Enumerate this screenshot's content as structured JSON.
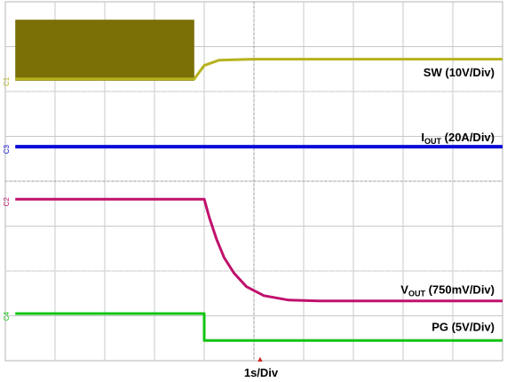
{
  "chart_data": {
    "type": "line",
    "grid": true,
    "grid_divisions": {
      "x": 10,
      "y": 8
    },
    "time_scale": "1s/Div",
    "trigger_marker": "▲",
    "series": [
      {
        "id": "sw",
        "channel_label": "C1",
        "name_main": "SW",
        "name_sub": "",
        "name_tail": " (10V/Div)",
        "color": "#7a7006",
        "trace_color": "#b6b21e",
        "points": [
          [
            0.5,
            1.72
          ],
          [
            3.8,
            1.72
          ],
          [
            4.0,
            1.42
          ],
          [
            4.3,
            1.3
          ],
          [
            5.0,
            1.28
          ],
          [
            10.0,
            1.28
          ]
        ]
      },
      {
        "id": "iout",
        "channel_label": "C3",
        "name_main": "I",
        "name_sub": "OUT",
        "name_tail": " (20A/Div)",
        "color": "#0a0ad8",
        "points": [
          [
            0.5,
            3.23
          ],
          [
            10.0,
            3.23
          ]
        ]
      },
      {
        "id": "vout",
        "channel_label": "C2",
        "name_main": "V",
        "name_sub": "OUT",
        "name_tail": " (750mV/Div)",
        "color": "#c0116c",
        "points": [
          [
            0.5,
            4.4
          ],
          [
            4.0,
            4.4
          ],
          [
            4.1,
            4.8
          ],
          [
            4.25,
            5.3
          ],
          [
            4.4,
            5.7
          ],
          [
            4.6,
            6.05
          ],
          [
            4.85,
            6.35
          ],
          [
            5.2,
            6.55
          ],
          [
            5.7,
            6.65
          ],
          [
            6.3,
            6.67
          ],
          [
            10.0,
            6.67
          ]
        ]
      },
      {
        "id": "pg",
        "channel_label": "C4",
        "name_main": "PG",
        "name_sub": "",
        "name_tail": " (5V/Div)",
        "color": "#12c412",
        "points": [
          [
            0.5,
            6.95
          ],
          [
            4.0,
            6.95
          ],
          [
            4.0,
            7.55
          ],
          [
            10.0,
            7.55
          ]
        ]
      }
    ]
  }
}
